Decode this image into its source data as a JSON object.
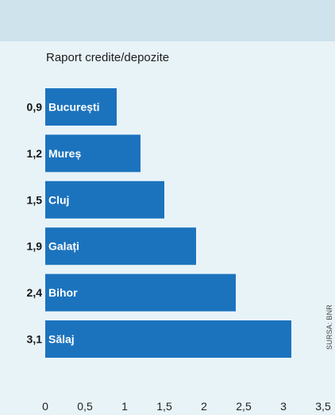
{
  "chart_data": {
    "type": "bar",
    "orientation": "horizontal",
    "title": "Raport credite/depozite",
    "source": "SURSA: BNR",
    "categories": [
      "București",
      "Mureș",
      "Cluj",
      "Galați",
      "Bihor",
      "Sălaj"
    ],
    "values": [
      0.9,
      1.2,
      1.5,
      1.9,
      2.4,
      3.1
    ],
    "value_labels": [
      "0,9",
      "1,2",
      "1,5",
      "1,9",
      "2,4",
      "3,1"
    ],
    "xlim": [
      0,
      3.5
    ],
    "x_ticks": [
      0,
      0.5,
      1,
      1.5,
      2,
      2.5,
      3,
      3.5
    ],
    "x_tick_labels": [
      "0",
      "0,5",
      "1",
      "1,5",
      "2",
      "2,5",
      "3",
      "3,5"
    ],
    "grid": false,
    "legend": "none",
    "colors": {
      "bar": "#1c73bd",
      "background": "#e8f3f8",
      "header": "#cfe3ed"
    }
  }
}
